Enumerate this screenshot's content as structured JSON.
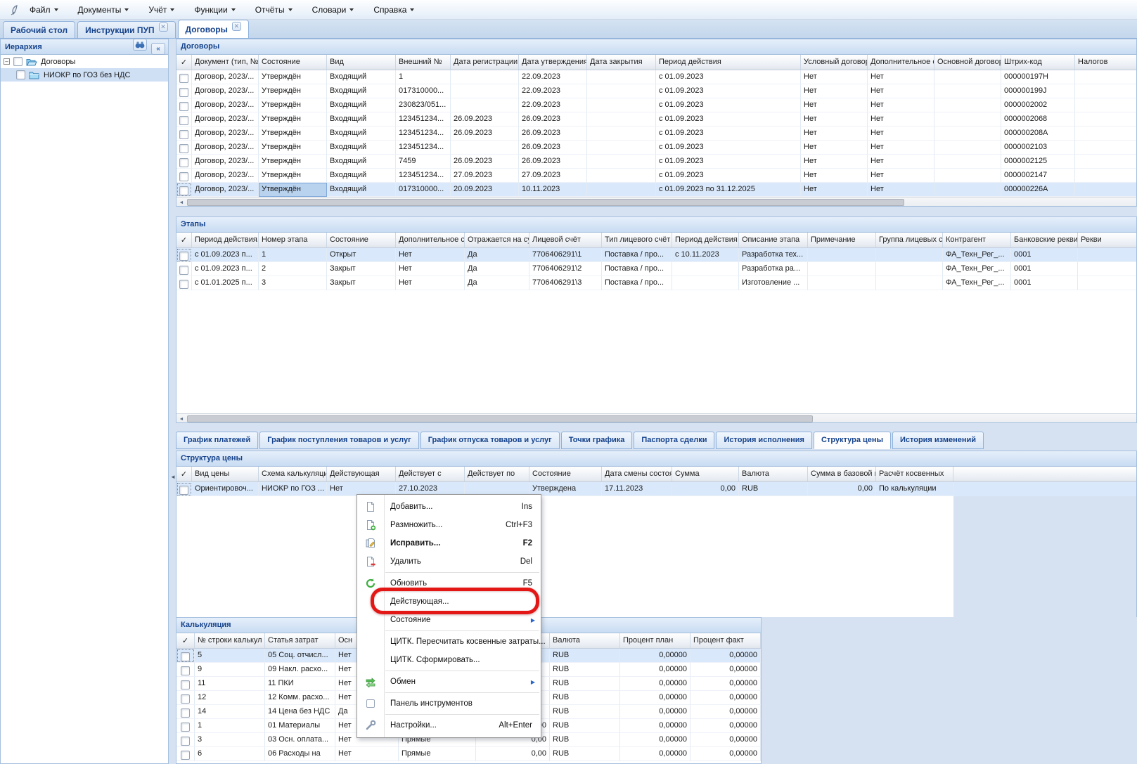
{
  "menu_bar": {
    "items": [
      "Файл",
      "Документы",
      "Учёт",
      "Функции",
      "Отчёты",
      "Словари",
      "Справка"
    ]
  },
  "doc_tabs": [
    {
      "label": "Рабочий стол",
      "closable": false,
      "active": false
    },
    {
      "label": "Инструкции ПУП",
      "closable": true,
      "active": false
    },
    {
      "label": "Договоры",
      "closable": true,
      "active": true
    }
  ],
  "sidebar": {
    "title": "Иерархия",
    "buttons": [
      "binoculars-icon",
      "collapse-icon"
    ],
    "tree": [
      {
        "label": "Договоры",
        "level": 0,
        "expanded": true,
        "selected": false,
        "folder": "open"
      },
      {
        "label": "НИОКР по ГОЗ без НДС",
        "level": 1,
        "expanded": false,
        "selected": true,
        "folder": "closed"
      }
    ]
  },
  "contracts": {
    "title": "Договоры",
    "check_header": "✓",
    "columns": [
      "Документ (тип, №",
      "Состояние",
      "Вид",
      "Внешний №",
      "Дата регистрации.",
      "Дата утверждения",
      "Дата закрытия",
      "Период действия",
      "Условный договор",
      "Дополнительное с",
      "Основной договор",
      "Штрих-код",
      "Налогов"
    ],
    "rows": [
      [
        "Договор, 2023/...",
        "Утверждён",
        "Входящий",
        "1",
        "",
        "22.09.2023",
        "",
        "с 01.09.2023",
        "Нет",
        "Нет",
        "",
        "000000197H",
        ""
      ],
      [
        "Договор, 2023/...",
        "Утверждён",
        "Входящий",
        "017310000...",
        "",
        "22.09.2023",
        "",
        "с 01.09.2023",
        "Нет",
        "Нет",
        "",
        "000000199J",
        ""
      ],
      [
        "Договор, 2023/...",
        "Утверждён",
        "Входящий",
        "230823/051...",
        "",
        "22.09.2023",
        "",
        "с 01.09.2023",
        "Нет",
        "Нет",
        "",
        "0000002002",
        ""
      ],
      [
        "Договор, 2023/...",
        "Утверждён",
        "Входящий",
        "123451234...",
        "26.09.2023",
        "26.09.2023",
        "",
        "с 01.09.2023",
        "Нет",
        "Нет",
        "",
        "0000002068",
        ""
      ],
      [
        "Договор, 2023/...",
        "Утверждён",
        "Входящий",
        "123451234...",
        "26.09.2023",
        "26.09.2023",
        "",
        "с 01.09.2023",
        "Нет",
        "Нет",
        "",
        "000000208A",
        ""
      ],
      [
        "Договор, 2023/...",
        "Утверждён",
        "Входящий",
        "123451234...",
        "",
        "26.09.2023",
        "",
        "с 01.09.2023",
        "Нет",
        "Нет",
        "",
        "0000002103",
        ""
      ],
      [
        "Договор, 2023/...",
        "Утверждён",
        "Входящий",
        "7459",
        "26.09.2023",
        "26.09.2023",
        "",
        "с 01.09.2023",
        "Нет",
        "Нет",
        "",
        "0000002125",
        ""
      ],
      [
        "Договор, 2023/...",
        "Утверждён",
        "Входящий",
        "123451234...",
        "27.09.2023",
        "27.09.2023",
        "",
        "с 01.09.2023",
        "Нет",
        "Нет",
        "",
        "0000002147",
        ""
      ],
      [
        "Договор, 2023/...",
        "Утверждён",
        "Входящий",
        "017310000...",
        "20.09.2023",
        "10.11.2023",
        "",
        "с 01.09.2023 по 31.12.2025",
        "Нет",
        "Нет",
        "",
        "000000226A",
        ""
      ]
    ],
    "selected_row": 8,
    "selected_cell": 1
  },
  "stages": {
    "title": "Этапы",
    "check_header": "✓",
    "columns": [
      "Период действия..",
      "Номер этапа",
      "Состояние",
      "Дополнительное с",
      "Отражается на су",
      "Лицевой счёт",
      "Тип лицевого счёт",
      "Период действия л",
      "Описание этапа",
      "Примечание",
      "Группа лицевых с",
      "Контрагент",
      "Банковские рекви",
      "Рекви"
    ],
    "rows": [
      [
        "с 01.09.2023 п...",
        "1",
        "Открыт",
        "Нет",
        "Да",
        "7706406291\\1",
        "Поставка / про...",
        "с 10.11.2023",
        "Разработка тех...",
        "",
        "",
        "ФА_Техн_Рег_...",
        "0001",
        ""
      ],
      [
        "с 01.09.2023 п...",
        "2",
        "Закрыт",
        "Нет",
        "Да",
        "7706406291\\2",
        "Поставка / про...",
        "",
        "Разработка ра...",
        "",
        "",
        "ФА_Техн_Рег_...",
        "0001",
        ""
      ],
      [
        "с 01.01.2025 п...",
        "3",
        "Закрыт",
        "Нет",
        "Да",
        "7706406291\\3",
        "Поставка / про...",
        "",
        "Изготовление ...",
        "",
        "",
        "ФА_Техн_Рег_...",
        "0001",
        ""
      ]
    ],
    "selected_row": 0
  },
  "subtabs": {
    "items": [
      "График платежей",
      "График поступления товаров и услуг",
      "График отпуска товаров и услуг",
      "Точки графика",
      "Паспорта сделки",
      "История исполнения",
      "Структура цены",
      "История изменений"
    ],
    "active": "Структура цены"
  },
  "price_structure": {
    "title": "Структура цены",
    "check_header": "✓",
    "columns": [
      "Вид цены",
      "Схема калькуляци",
      "Действующая",
      "Действует с",
      "Действует по",
      "Состояние",
      "Дата смены состоя",
      "Сумма",
      "Валюта",
      "Сумма в базовой в",
      "Расчёт косвенных"
    ],
    "rows": [
      [
        "Ориентировоч...",
        "НИОКР по ГОЗ ...",
        "Нет",
        "27.10.2023",
        "",
        "Утверждена",
        "17.11.2023",
        "0,00",
        "RUB",
        "0,00",
        "По калькуляции"
      ]
    ],
    "selected_row": 0
  },
  "calculation": {
    "title": "Калькуляция",
    "check_header": "✓",
    "columns": [
      "№ строки калькул",
      "Статья затрат",
      "Осн",
      "",
      "",
      "Валюта",
      "Процент план",
      "Процент факт"
    ],
    "rows": [
      [
        "5",
        "05 Соц. отчисл...",
        "Нет",
        "",
        "",
        "RUB",
        "0,00000",
        "0,00000"
      ],
      [
        "9",
        "09 Накл. расхо...",
        "Нет",
        "",
        "",
        "RUB",
        "0,00000",
        "0,00000"
      ],
      [
        "11",
        "11 ПКИ",
        "Нет",
        "",
        "",
        "RUB",
        "0,00000",
        "0,00000"
      ],
      [
        "12",
        "12 Комм. расхо...",
        "Нет",
        "",
        "",
        "RUB",
        "0,00000",
        "0,00000"
      ],
      [
        "14",
        "14 Цена без НДС",
        "Да",
        "",
        "",
        "RUB",
        "0,00000",
        "0,00000"
      ],
      [
        "1",
        "01 Материалы",
        "Нет",
        "Прямые",
        "0,00",
        "RUB",
        "0,00000",
        "0,00000"
      ],
      [
        "3",
        "03 Осн. оплата...",
        "Нет",
        "Прямые",
        "0,00",
        "RUB",
        "0,00000",
        "0,00000"
      ],
      [
        "6",
        "06 Расходы на",
        "Нет",
        "Прямые",
        "0,00",
        "RUB",
        "0,00000",
        "0,00000"
      ]
    ],
    "selected_row": 0
  },
  "context_menu": {
    "annotation_color": "#e41717",
    "items": [
      {
        "label": "Добавить...",
        "shortcut": "Ins",
        "icon": "doc-add-icon"
      },
      {
        "label": "Размножить...",
        "shortcut": "Ctrl+F3",
        "icon": "doc-copy-icon"
      },
      {
        "label": "Исправить...",
        "shortcut": "F2",
        "icon": "doc-edit-icon",
        "bold": true
      },
      {
        "label": "Удалить",
        "shortcut": "Del",
        "icon": "doc-delete-icon"
      },
      {
        "sep": true
      },
      {
        "label": "Обновить",
        "shortcut": "F5",
        "icon": "refresh-icon"
      },
      {
        "label": "Действующая...",
        "annotated": true
      },
      {
        "label": "Состояние",
        "submenu": true
      },
      {
        "sep": true
      },
      {
        "label": "ЦИТК. Пересчитать косвенные затраты..."
      },
      {
        "label": "ЦИТК. Сформировать..."
      },
      {
        "sep": true
      },
      {
        "label": "Обмен",
        "submenu": true,
        "icon": "exchange-icon"
      },
      {
        "sep": true
      },
      {
        "label": "Панель инструментов",
        "icon": "checkbox-icon"
      },
      {
        "sep": true
      },
      {
        "label": "Настройки...",
        "shortcut": "Alt+Enter",
        "icon": "wrench-icon"
      }
    ]
  }
}
